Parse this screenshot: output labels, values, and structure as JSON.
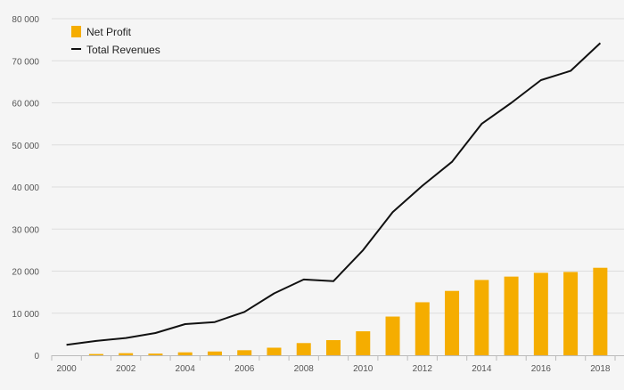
{
  "chart_data": {
    "type": "bar+line",
    "title": "",
    "xlabel": "",
    "ylabel": "",
    "ylim": [
      0,
      80000
    ],
    "y_ticks": [
      "0",
      "10 000",
      "20 000",
      "30 000",
      "40 000",
      "50 000",
      "60 000",
      "70 000",
      "80 000"
    ],
    "y_tick_values": [
      0,
      10000,
      20000,
      30000,
      40000,
      50000,
      60000,
      70000,
      80000
    ],
    "x": [
      2000,
      2001,
      2002,
      2003,
      2004,
      2005,
      2006,
      2007,
      2008,
      2009,
      2010,
      2011,
      2012,
      2013,
      2014,
      2015,
      2016,
      2017,
      2018
    ],
    "x_tick_labels": [
      "2000",
      "2002",
      "2004",
      "2006",
      "2008",
      "2010",
      "2012",
      "2014",
      "2016",
      "2018"
    ],
    "legend_position": "top-left",
    "series": [
      {
        "name": "Net Profit",
        "type": "bar",
        "color": "#f5ad00",
        "values": [
          0,
          300,
          500,
          400,
          700,
          900,
          1200,
          1800,
          2900,
          3600,
          5700,
          9200,
          12600,
          15300,
          17900,
          18700,
          19600,
          19800,
          20800
        ]
      },
      {
        "name": "Total Revenues",
        "type": "line",
        "color": "#111111",
        "values": [
          2500,
          3400,
          4100,
          5300,
          7400,
          7900,
          10300,
          14700,
          18000,
          17600,
          25000,
          34000,
          40300,
          46000,
          55000,
          60000,
          65400,
          67600,
          74200
        ]
      }
    ]
  },
  "legend": {
    "net_profit_label": "Net Profit",
    "total_revenues_label": "Total Revenues"
  }
}
